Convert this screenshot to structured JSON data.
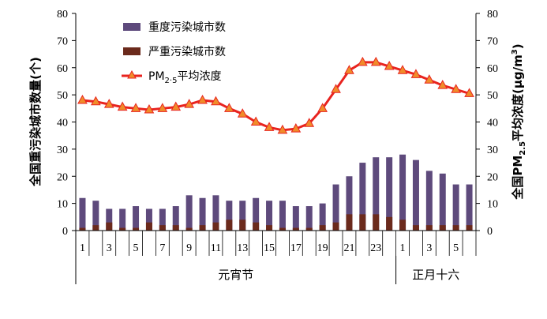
{
  "chart_data": {
    "type": "bar",
    "x_tick_labels": [
      "1",
      "",
      "3",
      "",
      "5",
      "",
      "7",
      "",
      "9",
      "",
      "11",
      "",
      "13",
      "",
      "15",
      "",
      "17",
      "",
      "19",
      "",
      "21",
      "",
      "23",
      "",
      "1",
      "",
      "3",
      "",
      "5",
      ""
    ],
    "groups": [
      {
        "label": "元宵节",
        "start": 0,
        "end": 23
      },
      {
        "label": "正月十六",
        "start": 24,
        "end": 29
      }
    ],
    "series": [
      {
        "name": "重度污染城市数",
        "kind": "bar",
        "axis": "left",
        "color": "#5e4a7c",
        "values": [
          12,
          11,
          8,
          8,
          9,
          8,
          8,
          9,
          13,
          12,
          13,
          11,
          11,
          12,
          11,
          11,
          9,
          9,
          10,
          17,
          20,
          25,
          27,
          27,
          28,
          26,
          22,
          21,
          17,
          17
        ]
      },
      {
        "name": "严重污染城市数",
        "kind": "bar",
        "axis": "left",
        "color": "#6b2a1c",
        "values": [
          1,
          2,
          3,
          1,
          1,
          3,
          2,
          2,
          1,
          2,
          3,
          4,
          4,
          3,
          2,
          1,
          1,
          1,
          2,
          3,
          6,
          6,
          6,
          5,
          4,
          2,
          2,
          2,
          2,
          2
        ]
      },
      {
        "name": "PM2.5平均浓度",
        "kind": "line",
        "axis": "right",
        "color": "#e8231f",
        "marker_color": "#f08c2a",
        "values": [
          48,
          47.5,
          46.5,
          45.5,
          45,
          44.5,
          45,
          45.5,
          46.5,
          48,
          47.5,
          45,
          43,
          40,
          38,
          37,
          37.5,
          39.5,
          45,
          52,
          59,
          62,
          62,
          60.5,
          59,
          57.5,
          55.5,
          53.5,
          52,
          50.5
        ]
      }
    ],
    "y_left": {
      "label": "全国重污染城市数量(个)",
      "ylim": [
        0,
        80
      ],
      "ticks": [
        "0",
        "10",
        "20",
        "30",
        "40",
        "50",
        "60",
        "70",
        "80"
      ]
    },
    "y_right": {
      "label_parts": [
        "全国PM",
        "2.5",
        "平均浓度(μg/m",
        "3",
        ")"
      ],
      "ylim": [
        0,
        80
      ],
      "ticks": [
        "0",
        "10",
        "20",
        "30",
        "40",
        "50",
        "60",
        "70",
        "80"
      ]
    },
    "legend": {
      "position": "top-center",
      "entries": [
        {
          "label": "重度污染城市数"
        },
        {
          "label": "严重污染城市数"
        },
        {
          "label_parts": [
            "PM",
            "2",
            "·",
            "5",
            "平均浓度"
          ]
        }
      ]
    },
    "grid": false
  }
}
